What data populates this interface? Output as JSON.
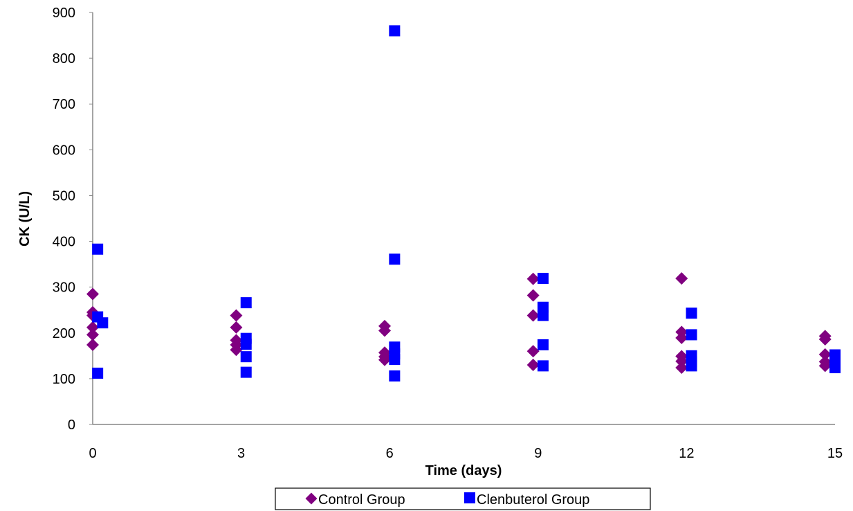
{
  "chart_data": {
    "type": "scatter",
    "title": "",
    "xlabel": "Time (days)",
    "ylabel": "CK (U/L)",
    "xlim": [
      0,
      15
    ],
    "ylim": [
      0,
      900
    ],
    "xticks": [
      0,
      3,
      6,
      9,
      12,
      15
    ],
    "yticks": [
      0,
      100,
      200,
      300,
      400,
      500,
      600,
      700,
      800,
      900
    ],
    "grid": false,
    "legend_position": "bottom",
    "series": [
      {
        "name": "Control Group",
        "marker": "diamond",
        "color": "#800080",
        "points": [
          {
            "x": 0,
            "y": 285
          },
          {
            "x": 0,
            "y": 245
          },
          {
            "x": 0,
            "y": 238
          },
          {
            "x": 0,
            "y": 212
          },
          {
            "x": 0,
            "y": 196
          },
          {
            "x": 0,
            "y": 174
          },
          {
            "x": 2.9,
            "y": 238
          },
          {
            "x": 2.9,
            "y": 212
          },
          {
            "x": 2.9,
            "y": 184
          },
          {
            "x": 2.9,
            "y": 174
          },
          {
            "x": 2.9,
            "y": 163
          },
          {
            "x": 5.9,
            "y": 215
          },
          {
            "x": 5.9,
            "y": 205
          },
          {
            "x": 5.9,
            "y": 157
          },
          {
            "x": 5.9,
            "y": 148
          },
          {
            "x": 5.9,
            "y": 141
          },
          {
            "x": 8.9,
            "y": 318
          },
          {
            "x": 8.9,
            "y": 282
          },
          {
            "x": 8.9,
            "y": 238
          },
          {
            "x": 8.9,
            "y": 160
          },
          {
            "x": 8.9,
            "y": 130
          },
          {
            "x": 11.9,
            "y": 319
          },
          {
            "x": 11.9,
            "y": 202
          },
          {
            "x": 11.9,
            "y": 189
          },
          {
            "x": 11.9,
            "y": 149
          },
          {
            "x": 11.9,
            "y": 138
          },
          {
            "x": 11.9,
            "y": 124
          },
          {
            "x": 14.8,
            "y": 193
          },
          {
            "x": 14.8,
            "y": 186
          },
          {
            "x": 14.8,
            "y": 153
          },
          {
            "x": 14.8,
            "y": 137
          },
          {
            "x": 14.8,
            "y": 128
          }
        ]
      },
      {
        "name": "Clenbuterol Group",
        "marker": "square",
        "color": "#0000FF",
        "points": [
          {
            "x": 0.1,
            "y": 383
          },
          {
            "x": 0.1,
            "y": 235
          },
          {
            "x": 0.2,
            "y": 222
          },
          {
            "x": 0.1,
            "y": 112
          },
          {
            "x": 3.1,
            "y": 266
          },
          {
            "x": 3.1,
            "y": 188
          },
          {
            "x": 3.1,
            "y": 175
          },
          {
            "x": 3.1,
            "y": 148
          },
          {
            "x": 3.1,
            "y": 114
          },
          {
            "x": 6.1,
            "y": 860
          },
          {
            "x": 6.1,
            "y": 361
          },
          {
            "x": 6.1,
            "y": 169
          },
          {
            "x": 6.1,
            "y": 154
          },
          {
            "x": 6.1,
            "y": 142
          },
          {
            "x": 6.1,
            "y": 106
          },
          {
            "x": 9.1,
            "y": 319
          },
          {
            "x": 9.1,
            "y": 256
          },
          {
            "x": 9.1,
            "y": 238
          },
          {
            "x": 9.1,
            "y": 174
          },
          {
            "x": 9.1,
            "y": 128
          },
          {
            "x": 12.1,
            "y": 243
          },
          {
            "x": 12.1,
            "y": 196
          },
          {
            "x": 12.1,
            "y": 150
          },
          {
            "x": 12.1,
            "y": 137
          },
          {
            "x": 12.1,
            "y": 128
          },
          {
            "x": 15.0,
            "y": 152
          },
          {
            "x": 15.0,
            "y": 141
          },
          {
            "x": 15.0,
            "y": 130
          },
          {
            "x": 15.0,
            "y": 124
          }
        ]
      }
    ]
  }
}
